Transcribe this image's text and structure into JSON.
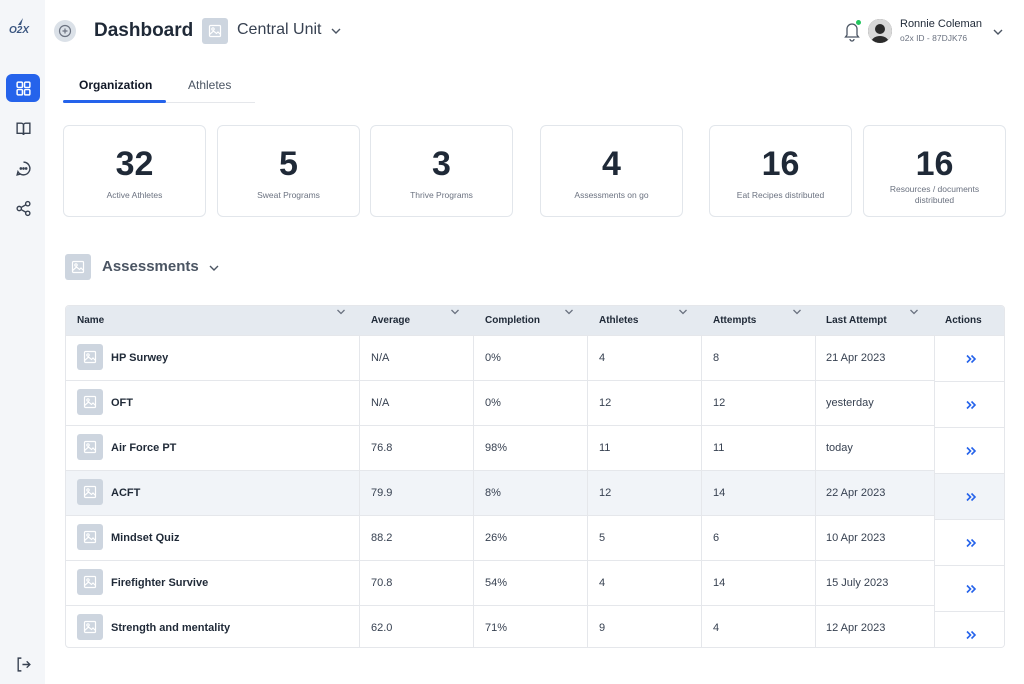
{
  "app": {
    "logo_text": "O2X"
  },
  "sidebar": {
    "items": [
      {
        "icon": "dashboard-grid-icon",
        "active": true
      },
      {
        "icon": "book-icon",
        "active": false
      },
      {
        "icon": "chat-icon",
        "active": false
      },
      {
        "icon": "share-icon",
        "active": false
      }
    ],
    "logout_icon": "logout-icon"
  },
  "header": {
    "title": "Dashboard",
    "unit": "Central Unit",
    "user": {
      "name": "Ronnie Coleman",
      "id": "o2x ID - 87DJK76"
    }
  },
  "tabs": [
    {
      "label": "Organization",
      "active": true
    },
    {
      "label": "Athletes",
      "active": false
    }
  ],
  "stats": [
    {
      "value": "32",
      "label": "Active Athletes"
    },
    {
      "value": "5",
      "label": "Sweat Programs"
    },
    {
      "value": "3",
      "label": "Thrive Programs"
    },
    {
      "value": "4",
      "label": "Assessments on go"
    },
    {
      "value": "16",
      "label": "Eat Recipes distributed"
    },
    {
      "value": "16",
      "label": "Resources / documents distributed"
    }
  ],
  "assessments": {
    "title": "Assessments",
    "columns": [
      "Name",
      "Average",
      "Completion",
      "Athletes",
      "Attempts",
      "Last Attempt",
      "Actions"
    ],
    "rows": [
      {
        "name": "HP Surwey",
        "average": "N/A",
        "completion": "0%",
        "athletes": "4",
        "attempts": "8",
        "last": "21 Apr 2023"
      },
      {
        "name": "OFT",
        "average": "N/A",
        "completion": "0%",
        "athletes": "12",
        "attempts": "12",
        "last": "yesterday"
      },
      {
        "name": "Air Force PT",
        "average": "76.8",
        "completion": "98%",
        "athletes": "11",
        "attempts": "11",
        "last": "today"
      },
      {
        "name": "ACFT",
        "average": "79.9",
        "completion": "8%",
        "athletes": "12",
        "attempts": "14",
        "last": "22 Apr 2023"
      },
      {
        "name": "Mindset Quiz",
        "average": "88.2",
        "completion": "26%",
        "athletes": "5",
        "attempts": "6",
        "last": "10 Apr 2023"
      },
      {
        "name": "Firefighter Survive",
        "average": "70.8",
        "completion": "54%",
        "athletes": "4",
        "attempts": "14",
        "last": "15 July 2023"
      },
      {
        "name": "Strength and mentality",
        "average": "62.0",
        "completion": "71%",
        "athletes": "9",
        "attempts": "4",
        "last": "12 Apr 2023"
      }
    ]
  },
  "colors": {
    "accent": "#2563eb",
    "online": "#22c55e",
    "header_bg": "#e5eaf0",
    "sidebar_bg": "#f4f6f9"
  }
}
